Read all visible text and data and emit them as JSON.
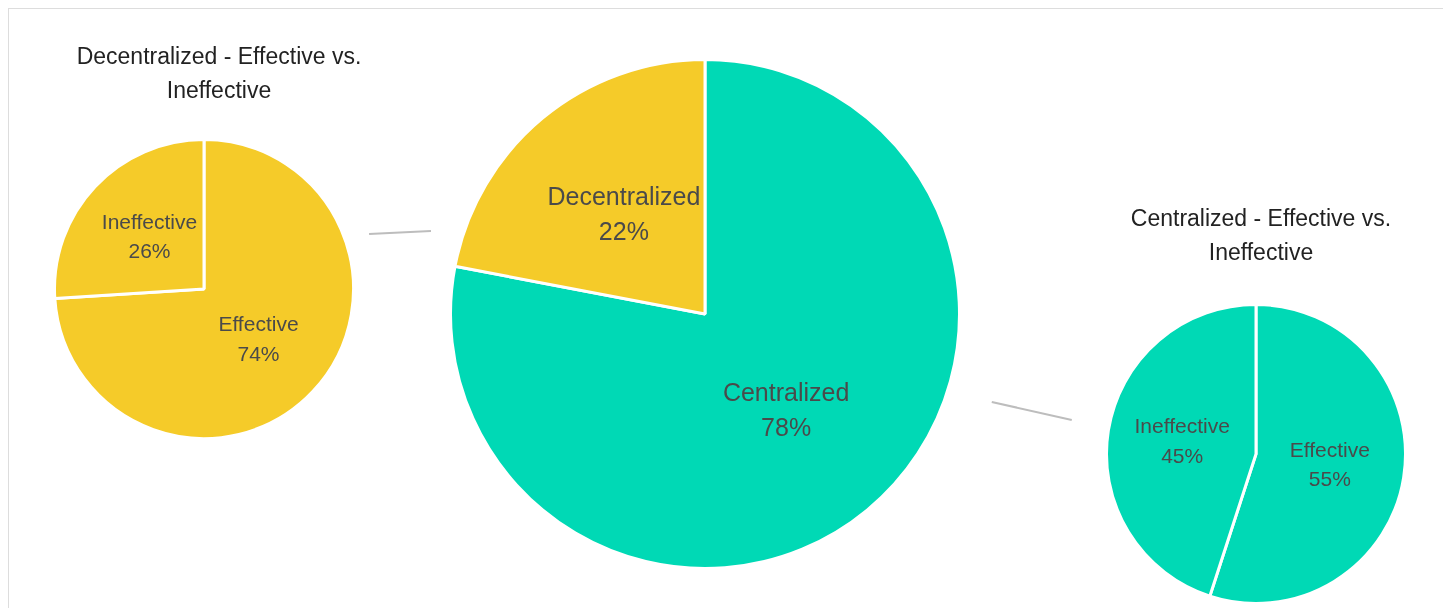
{
  "chart_data": [
    {
      "type": "pie",
      "title": "Decentralized - Effective vs. Ineffective",
      "categories": [
        "Effective",
        "Ineffective"
      ],
      "values": [
        74,
        26
      ],
      "value_labels": [
        "74%",
        "26%"
      ],
      "colors": [
        "#f5cb29",
        "#f5cb29"
      ],
      "legend": false
    },
    {
      "type": "pie",
      "categories": [
        "Centralized",
        "Decentralized"
      ],
      "values": [
        78,
        22
      ],
      "value_labels": [
        "78%",
        "22%"
      ],
      "colors": [
        "#00d9b5",
        "#f5cb29"
      ],
      "legend": false
    },
    {
      "type": "pie",
      "title": "Centralized - Effective vs. Ineffective",
      "categories": [
        "Effective",
        "Ineffective"
      ],
      "values": [
        55,
        45
      ],
      "value_labels": [
        "55%",
        "45%"
      ],
      "colors": [
        "#00d9b5",
        "#00d9b5"
      ],
      "legend": false
    }
  ]
}
